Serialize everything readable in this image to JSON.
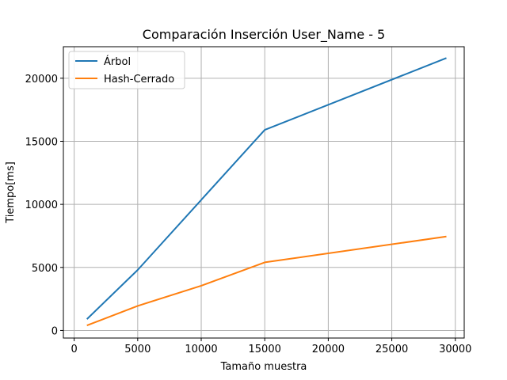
{
  "chart_data": {
    "type": "line",
    "title": "Comparación Inserción User_Name - 5",
    "xlabel": "Tamaño muestra",
    "ylabel": "Tiempo[ms]",
    "xlim": [
      -850,
      30700
    ],
    "ylim": [
      -600,
      22500
    ],
    "xticks": [
      0,
      5000,
      10000,
      15000,
      20000,
      25000,
      30000
    ],
    "yticks": [
      0,
      5000,
      10000,
      15000,
      20000
    ],
    "grid": true,
    "legend_position": "top-left",
    "series": [
      {
        "name": "Árbol",
        "color": "#1f77b4",
        "x": [
          1000,
          5000,
          15000,
          29300
        ],
        "y": [
          900,
          4800,
          15900,
          21600
        ]
      },
      {
        "name": "Hash-Cerrado",
        "color": "#ff7f0e",
        "x": [
          1000,
          5000,
          10000,
          15000,
          29300
        ],
        "y": [
          400,
          1950,
          3550,
          5400,
          7450
        ]
      }
    ]
  }
}
